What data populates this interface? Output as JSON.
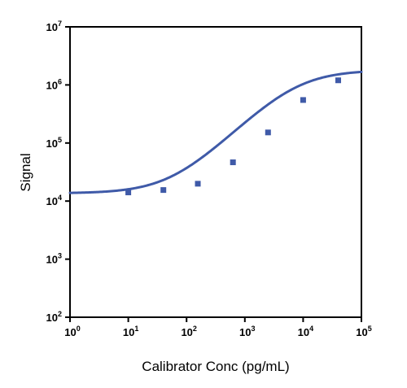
{
  "chart_data": {
    "type": "scatter",
    "title": "",
    "xlabel": "Calibrator Conc (pg/mL)",
    "ylabel": "Signal",
    "x_scale": "log",
    "y_scale": "log",
    "xlim": [
      1,
      100000
    ],
    "ylim": [
      100,
      10000000
    ],
    "grid": false,
    "legend": "none",
    "x_ticks": [
      {
        "base": "10",
        "exp": "0",
        "value": 1
      },
      {
        "base": "10",
        "exp": "1",
        "value": 10
      },
      {
        "base": "10",
        "exp": "2",
        "value": 100
      },
      {
        "base": "10",
        "exp": "3",
        "value": 1000
      },
      {
        "base": "10",
        "exp": "4",
        "value": 10000
      },
      {
        "base": "10",
        "exp": "5",
        "value": 100000
      }
    ],
    "y_ticks": [
      {
        "base": "10",
        "exp": "2",
        "value": 100
      },
      {
        "base": "10",
        "exp": "3",
        "value": 1000
      },
      {
        "base": "10",
        "exp": "4",
        "value": 10000
      },
      {
        "base": "10",
        "exp": "5",
        "value": 100000
      },
      {
        "base": "10",
        "exp": "6",
        "value": 1000000
      },
      {
        "base": "10",
        "exp": "7",
        "value": 10000000
      }
    ],
    "series": [
      {
        "color": "#3f5aa8",
        "marker": "square",
        "points": [
          {
            "x": 10,
            "y": 14100
          },
          {
            "x": 40,
            "y": 15500
          },
          {
            "x": 156,
            "y": 19900
          },
          {
            "x": 625,
            "y": 46500
          },
          {
            "x": 2500,
            "y": 152000
          },
          {
            "x": 10000,
            "y": 550000
          },
          {
            "x": 40000,
            "y": 1200000
          }
        ],
        "fit": {
          "model": "4PL",
          "bottom": 13600,
          "top": 1800000,
          "ec50": 7500,
          "hill": 1.0
        }
      }
    ]
  }
}
